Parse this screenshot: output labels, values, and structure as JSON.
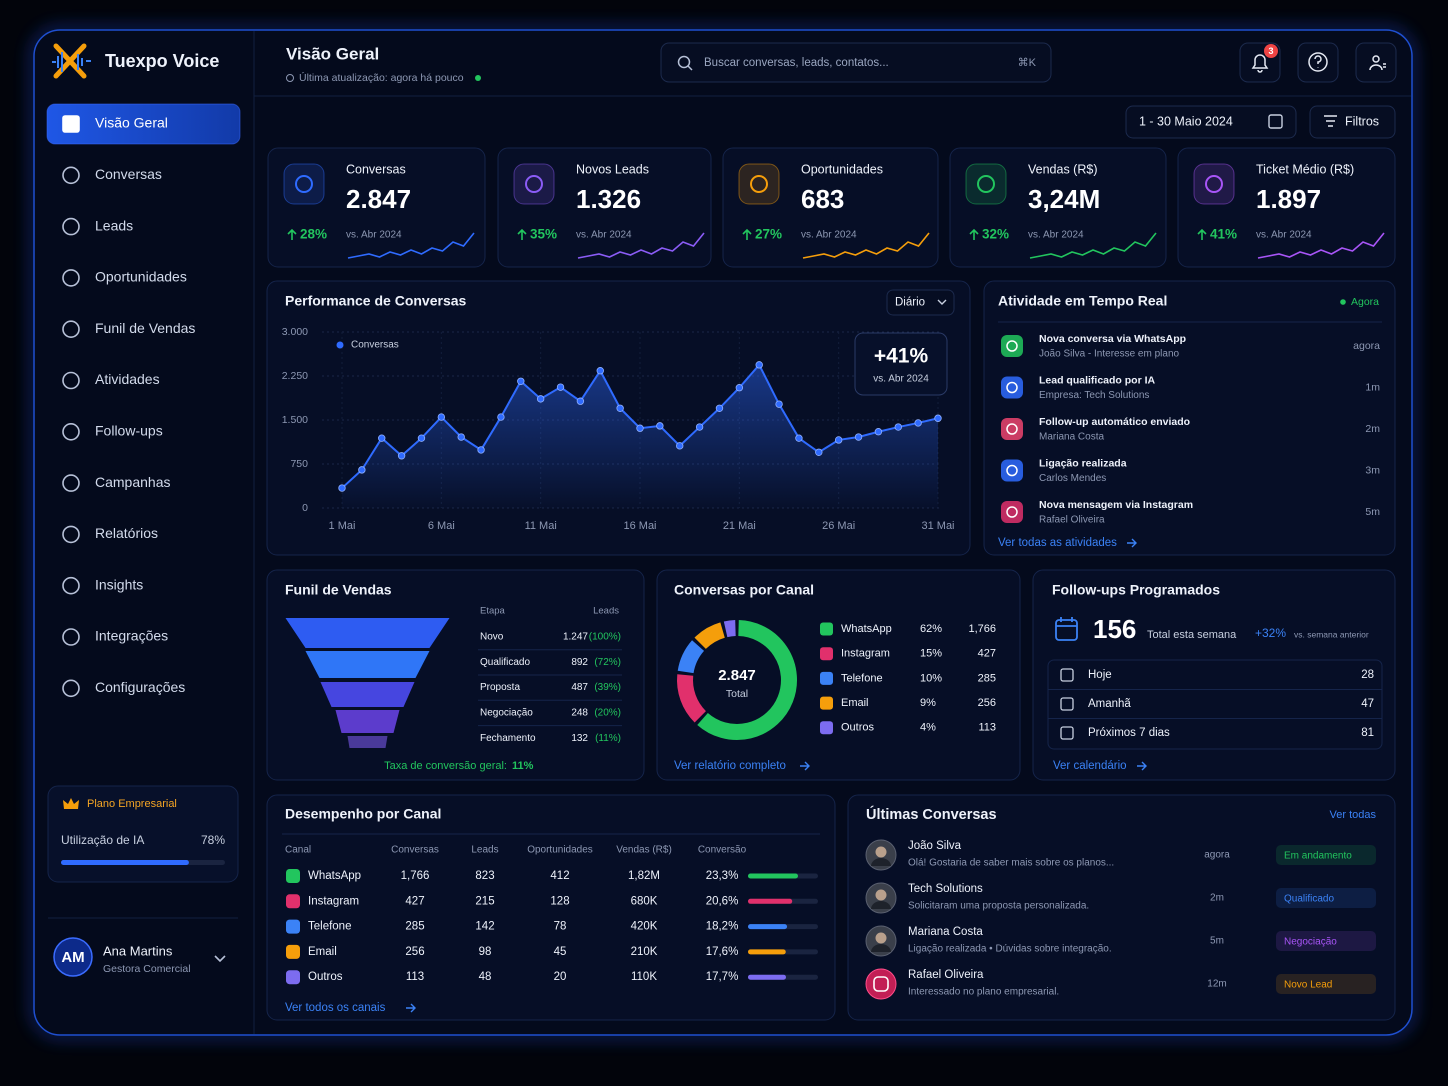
{
  "brand": "Tuexpo Voice",
  "nav": {
    "active": 0,
    "items": [
      "Visão Geral",
      "Conversas",
      "Leads",
      "Oportunidades",
      "Funil de Vendas",
      "Atividades",
      "Follow-ups",
      "Campanhas",
      "Relatórios",
      "Insights",
      "Integrações",
      "Configurações"
    ]
  },
  "plan": {
    "name": "Plano Empresarial",
    "usage_label": "Utilização de IA",
    "usage": 78,
    "usage_text": "78%"
  },
  "user": {
    "initials": "AM",
    "name": "Ana Martins",
    "role": "Gestora Comercial"
  },
  "header": {
    "title": "Visão Geral",
    "subtitle": "Última atualização: agora há pouco",
    "search": "Buscar conversas, leads, contatos...",
    "shortcut": "⌘K",
    "notifications": "3",
    "date_range": "1 - 30 Maio 2024",
    "filters": "Filtros"
  },
  "kpis": [
    {
      "label": "Conversas",
      "value": "2.847",
      "change": "28%",
      "compare": "vs. Abr 2024",
      "color": "#2f6bff"
    },
    {
      "label": "Novos Leads",
      "value": "1.326",
      "change": "35%",
      "compare": "vs. Abr 2024",
      "color": "#8b5cf6"
    },
    {
      "label": "Oportunidades",
      "value": "683",
      "change": "27%",
      "compare": "vs. Abr 2024",
      "color": "#f59e0b"
    },
    {
      "label": "Vendas (R$)",
      "value": "3,24M",
      "change": "32%",
      "compare": "vs. Abr 2024",
      "color": "#22c55e"
    },
    {
      "label": "Ticket Médio (R$)",
      "value": "1.897",
      "change": "41%",
      "compare": "vs. Abr 2024",
      "color": "#a855f7"
    }
  ],
  "performance": {
    "title": "Performance de Conversas",
    "period": "Diário",
    "badge": "+41%",
    "badge_note": "vs. Abr 2024",
    "chart_data": {
      "type": "line",
      "x": [
        1,
        2,
        3,
        4,
        5,
        6,
        7,
        8,
        9,
        10,
        11,
        12,
        13,
        14,
        15,
        16,
        17,
        18,
        19,
        20,
        21,
        22,
        23,
        24,
        25,
        26,
        27,
        28,
        29,
        30,
        31
      ],
      "series": [
        {
          "name": "Conversas",
          "color": "#2f6bff",
          "values": [
            340,
            650,
            1190,
            890,
            1190,
            1550,
            1210,
            990,
            1550,
            2160,
            1860,
            2060,
            1820,
            2340,
            1700,
            1360,
            1400,
            1060,
            1380,
            1700,
            2050,
            2440,
            1770,
            1190,
            950,
            1160,
            1210,
            1300,
            1380,
            1450,
            1530
          ]
        }
      ],
      "xlim": [
        1,
        31
      ],
      "xticks": [
        {
          "value": 1,
          "label": "1 Mai"
        },
        {
          "value": 6,
          "label": "6 Mai"
        },
        {
          "value": 11,
          "label": "11 Mai"
        },
        {
          "value": 16,
          "label": "16 Mai"
        },
        {
          "value": 21,
          "label": "21 Mai"
        },
        {
          "value": 26,
          "label": "26 Mai"
        },
        {
          "value": 31,
          "label": "31 Mai"
        }
      ],
      "ylim": [
        0,
        3000
      ],
      "yticks": [
        0,
        750,
        {
          "value": 1500,
          "label": "1.500"
        },
        {
          "value": 2250,
          "label": "2.250"
        },
        {
          "value": 3000,
          "label": "3.000"
        }
      ],
      "grid": true
    }
  },
  "activity": {
    "title": "Atividade em Tempo Real",
    "status": "Agora",
    "link": "Ver todas as atividades",
    "items": [
      {
        "title": "Nova conversa via WhatsApp",
        "detail": "João Silva - Interesse em plano",
        "time": "agora",
        "color": "#22c55e"
      },
      {
        "title": "Lead qualificado por IA",
        "detail": "Empresa: Tech Solutions",
        "time": "1m",
        "color": "#2f6bff"
      },
      {
        "title": "Follow-up automático enviado",
        "detail": "Mariana Costa",
        "time": "2m",
        "color": "#ef4470"
      },
      {
        "title": "Ligação realizada",
        "detail": "Carlos Mendes",
        "time": "3m",
        "color": "#2f6bff"
      },
      {
        "title": "Nova mensagem via Instagram",
        "detail": "Rafael Oliveira",
        "time": "5m",
        "color": "#e1306c"
      }
    ]
  },
  "funnel": {
    "title": "Funil de Vendas",
    "columns": [
      "Etapa",
      "Leads"
    ],
    "stages": [
      {
        "name": "Novo",
        "leads": "1.247",
        "share": "(100%)"
      },
      {
        "name": "Qualificado",
        "leads": "892",
        "share": "(72%)"
      },
      {
        "name": "Proposta",
        "leads": "487",
        "share": "(39%)"
      },
      {
        "name": "Negociação",
        "leads": "248",
        "share": "(20%)"
      },
      {
        "name": "Fechamento",
        "leads": "132",
        "share": "(11%)"
      }
    ],
    "conversion_label": "Taxa de conversão geral:",
    "conversion": "11%"
  },
  "channels": {
    "title": "Conversas por Canal",
    "total": "2.847",
    "total_label": "Total",
    "link": "Ver relatório completo",
    "items": [
      {
        "name": "WhatsApp",
        "share": 62,
        "share_label": "62%",
        "count": "1,766",
        "color": "#22c55e"
      },
      {
        "name": "Instagram",
        "share": 15,
        "share_label": "15%",
        "count": "427",
        "color": "#e1306c"
      },
      {
        "name": "Telefone",
        "share": 10,
        "share_label": "10%",
        "count": "285",
        "color": "#3b82f6"
      },
      {
        "name": "Email",
        "share": 9,
        "share_label": "9%",
        "count": "256",
        "color": "#f59e0b"
      },
      {
        "name": "Outros",
        "share": 4,
        "share_label": "4%",
        "count": "113",
        "color": "#7c6cf0"
      }
    ]
  },
  "followups": {
    "title": "Follow-ups Programados",
    "total": "156",
    "total_label": "Total esta semana",
    "change": "+32%",
    "change_label": "vs. semana anterior",
    "link": "Ver calendário",
    "rows": [
      {
        "label": "Hoje",
        "count": "28"
      },
      {
        "label": "Amanhã",
        "count": "47"
      },
      {
        "label": "Próximos 7 dias",
        "count": "81"
      }
    ]
  },
  "channel_table": {
    "title": "Desempenho por Canal",
    "link": "Ver todos os canais",
    "columns": [
      "Canal",
      "Conversas",
      "Leads",
      "Oportunidades",
      "Vendas (R$)",
      "Conversão"
    ],
    "rows": [
      {
        "channel": "WhatsApp",
        "conversations": "1,766",
        "leads": "823",
        "opportunities": "412",
        "sales": "1,82M",
        "rate": 23.3,
        "rate_label": "23,3%",
        "color": "#22c55e"
      },
      {
        "channel": "Instagram",
        "conversations": "427",
        "leads": "215",
        "opportunities": "128",
        "sales": "680K",
        "rate": 20.6,
        "rate_label": "20,6%",
        "color": "#e1306c"
      },
      {
        "channel": "Telefone",
        "conversations": "285",
        "leads": "142",
        "opportunities": "78",
        "sales": "420K",
        "rate": 18.2,
        "rate_label": "18,2%",
        "color": "#3b82f6"
      },
      {
        "channel": "Email",
        "conversations": "256",
        "leads": "98",
        "opportunities": "45",
        "sales": "210K",
        "rate": 17.6,
        "rate_label": "17,6%",
        "color": "#f59e0b"
      },
      {
        "channel": "Outros",
        "conversations": "113",
        "leads": "48",
        "opportunities": "20",
        "sales": "110K",
        "rate": 17.7,
        "rate_label": "17,7%",
        "color": "#7c6cf0"
      }
    ]
  },
  "conversations": {
    "title": "Últimas Conversas",
    "link": "Ver todas",
    "items": [
      {
        "name": "João Silva",
        "message": "Olá! Gostaria de saber mais sobre os planos...",
        "time": "agora",
        "status": "Em andamento",
        "status_color": "#22c55e"
      },
      {
        "name": "Tech Solutions",
        "message": "Solicitaram uma proposta personalizada.",
        "time": "2m",
        "status": "Qualificado",
        "status_color": "#3b82f6"
      },
      {
        "name": "Mariana Costa",
        "message": "Ligação realizada • Dúvidas sobre integração.",
        "time": "5m",
        "status": "Negociação",
        "status_color": "#a855f7"
      },
      {
        "name": "Rafael Oliveira",
        "message": "Interessado no plano empresarial.",
        "time": "12m",
        "status": "Novo Lead",
        "status_color": "#f59e0b"
      }
    ]
  }
}
